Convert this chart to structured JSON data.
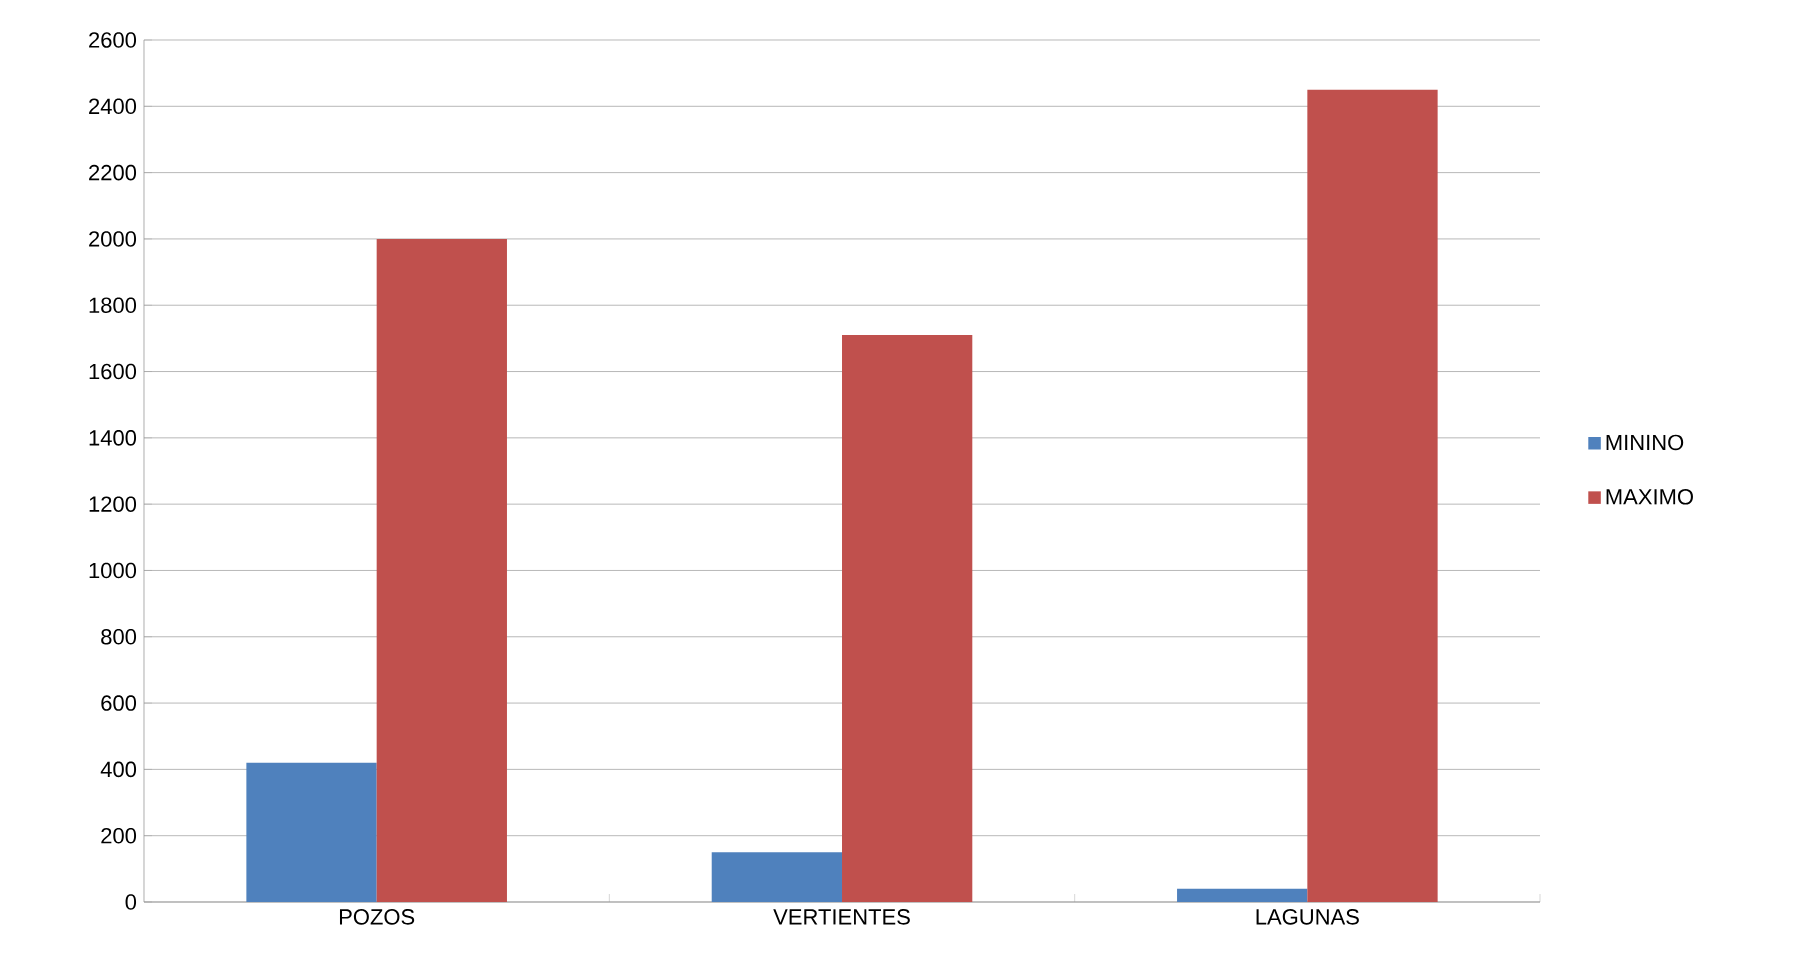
{
  "chart_data": {
    "type": "bar",
    "categories": [
      "POZOS",
      "VERTIENTES",
      "LAGUNAS"
    ],
    "series": [
      {
        "name": "MININO",
        "color": "#4f81bd",
        "values": [
          420,
          150,
          40
        ]
      },
      {
        "name": "MAXIMO",
        "color": "#c0504d",
        "values": [
          2000,
          1710,
          2450
        ]
      }
    ],
    "ylim": [
      0,
      2600
    ],
    "yticks": [
      0,
      200,
      400,
      600,
      800,
      1000,
      1200,
      1400,
      1600,
      1800,
      2000,
      2200,
      2400,
      2600
    ],
    "grid": "y",
    "legend": "right"
  }
}
